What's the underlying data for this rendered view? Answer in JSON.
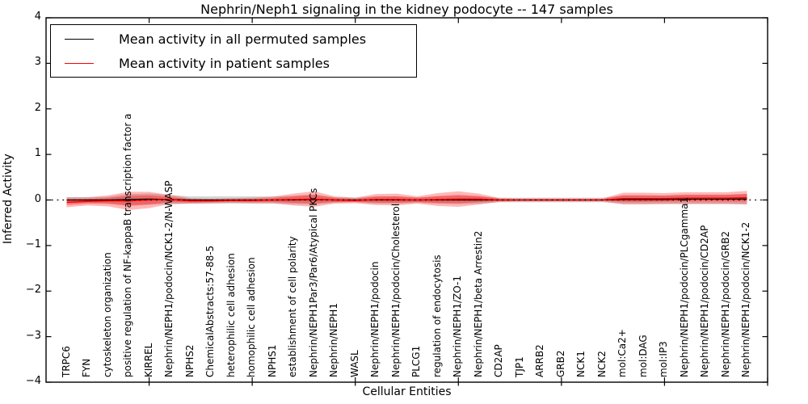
{
  "figure": {
    "title": "Nephrin/Neph1 signaling in the kidney podocyte -- 147 samples"
  },
  "chart_data": {
    "type": "line",
    "title": "Nephrin/Neph1 signaling in the kidney podocyte -- 147 samples",
    "xlabel": "Cellular Entities",
    "ylabel": "Inferred Activity",
    "ylim": [
      -4,
      4
    ],
    "xlim": [
      0,
      35
    ],
    "grid": false,
    "legend_position": "upper-left",
    "zero_line": 0,
    "ytick_labels": [
      "4",
      "3",
      "2",
      "1",
      "0",
      "−1",
      "−2",
      "−3",
      "−4"
    ],
    "xtick_positions": [
      5,
      10,
      15,
      20,
      25,
      30,
      35
    ],
    "categories": [
      "TRPC6",
      "FYN",
      "cytoskeleton organization",
      "positive regulation of NF-kappaB transcription factor a",
      "KIRREL",
      "Nephrin/NEPH1/podocin/NCK1-2/N-WASP",
      "NPHS2",
      "ChemicalAbstracts:57-88-5",
      "heterophilic cell adhesion",
      "homophilic cell adhesion",
      "NPHS1",
      "establishment of cell polarity",
      "Nephrin/NEPH1Par3/Par6/Atypical PKCs",
      "Nephrin/NEPH1",
      "WASL",
      "Nephrin/NEPH1/podocin",
      "Nephrin/NEPH1/podocin/Cholesterol",
      "PLCG1",
      "regulation of endocytosis",
      "Nephrin/NEPH1/ZO-1",
      "Nephrin/NEPH1/beta Arrestin2",
      "CD2AP",
      "TJP1",
      "ARRB2",
      "GRB2",
      "NCK1",
      "NCK2",
      "mol:Ca2+",
      "mol:DAG",
      "mol:IP3",
      "Nephrin/NEPH1/podocin/PLCgamma1",
      "Nephrin/NEPH1/podocin/CD2AP",
      "Nephrin/NEPH1/podocin/GRB2",
      "Nephrin/NEPH1/podocin/NCK1-2"
    ],
    "series": [
      {
        "name": "Mean activity in all permuted samples",
        "color": "#000000",
        "line_width": 1.3,
        "values": [
          0.0,
          0.0,
          0.0,
          0.01,
          0.02,
          0.01,
          0.0,
          0.0,
          0.0,
          0.0,
          0.0,
          0.0,
          0.01,
          0.0,
          0.0,
          0.0,
          0.0,
          0.0,
          0.0,
          0.0,
          0.0,
          0.0,
          0.0,
          0.0,
          0.0,
          0.0,
          0.0,
          0.01,
          0.01,
          0.01,
          0.02,
          0.02,
          0.02,
          0.02
        ],
        "band_half_width": [
          0.06,
          0.06,
          0.07,
          0.12,
          0.12,
          0.1,
          0.08,
          0.08,
          0.08,
          0.08,
          0.08,
          0.09,
          0.11,
          0.06,
          0.05,
          0.08,
          0.08,
          0.06,
          0.08,
          0.09,
          0.08,
          0.05,
          0.05,
          0.05,
          0.05,
          0.05,
          0.05,
          0.09,
          0.09,
          0.09,
          0.1,
          0.1,
          0.1,
          0.11
        ],
        "band_color": "#999999",
        "band_opacity": 0.4
      },
      {
        "name": "Mean activity in patient samples",
        "color": "#ff0000",
        "line_width": 1.5,
        "values": [
          -0.05,
          -0.03,
          -0.02,
          -0.02,
          0.0,
          0.01,
          -0.02,
          -0.02,
          -0.01,
          -0.01,
          0.0,
          0.01,
          0.02,
          0.0,
          -0.01,
          0.01,
          0.01,
          0.0,
          0.01,
          0.02,
          0.02,
          0.0,
          0.0,
          0.0,
          0.0,
          0.0,
          0.0,
          0.03,
          0.03,
          0.03,
          0.04,
          0.04,
          0.04,
          0.05
        ],
        "band_half_width": [
          0.11,
          0.09,
          0.12,
          0.2,
          0.18,
          0.1,
          0.06,
          0.05,
          0.05,
          0.06,
          0.07,
          0.13,
          0.17,
          0.08,
          0.06,
          0.12,
          0.13,
          0.08,
          0.14,
          0.17,
          0.12,
          0.04,
          0.03,
          0.03,
          0.03,
          0.03,
          0.03,
          0.13,
          0.13,
          0.12,
          0.13,
          0.13,
          0.13,
          0.15
        ],
        "band_color": "#ff0000",
        "band_opacity": 0.28
      }
    ]
  }
}
